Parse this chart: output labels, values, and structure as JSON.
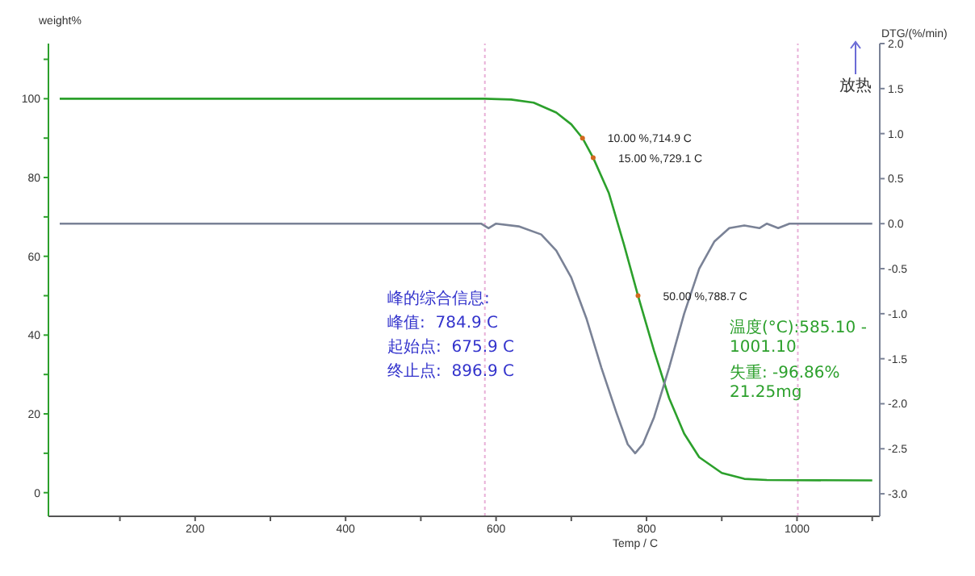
{
  "chart_data": {
    "type": "line",
    "xlabel": "Temp / C",
    "ylabel": "weight%",
    "y2label": "DTG/(%/min)",
    "xlim": [
      5,
      1110
    ],
    "xticks": [
      {
        "value": 100,
        "label": null
      },
      200,
      {
        "value": 300,
        "label": null
      },
      400,
      {
        "value": 500,
        "label": null
      },
      600,
      {
        "value": 700,
        "label": null
      },
      800,
      {
        "value": 900,
        "label": null
      },
      1000,
      {
        "value": 1100,
        "label": null
      }
    ],
    "ylim": [
      -6,
      114
    ],
    "yticks": [
      0,
      {
        "value": 10,
        "label": null
      },
      20,
      {
        "value": 30,
        "label": null
      },
      40,
      {
        "value": 50,
        "label": null
      },
      60,
      {
        "value": 70,
        "label": null
      },
      80,
      {
        "value": 90,
        "label": null
      },
      100,
      {
        "value": 110,
        "label": null
      }
    ],
    "y2lim": [
      -3.25,
      2.0
    ],
    "y2ticks": [
      {
        "value": -3,
        "label": "-3.0"
      },
      {
        "value": -2.5,
        "label": "-2.5"
      },
      {
        "value": -2,
        "label": "-2.0"
      },
      {
        "value": -1.5,
        "label": "-1.5"
      },
      {
        "value": -1,
        "label": "-1.0"
      },
      {
        "value": -0.5,
        "label": "-0.5"
      },
      {
        "value": 0,
        "label": "0.0"
      },
      {
        "value": 0.5,
        "label": "0.5"
      },
      {
        "value": 1,
        "label": "1.0"
      },
      {
        "value": 1.5,
        "label": "1.5"
      },
      {
        "value": 2,
        "label": "2.0"
      }
    ],
    "grid": false,
    "line_style": "solid",
    "series": [
      {
        "color": "#2ca02c",
        "x": [
          20,
          585,
          620,
          650,
          680,
          700,
          714.9,
          729.1,
          750,
          770,
          788.7,
          810,
          830,
          850,
          870,
          900,
          930,
          960,
          1100
        ],
        "values": [
          100,
          100,
          99.8,
          99,
          96.5,
          93.5,
          90,
          85,
          76,
          63,
          50,
          36,
          24,
          15,
          9,
          5,
          3.5,
          3.2,
          3.1
        ]
      },
      {
        "color": "#7a8296",
        "axis": "y2",
        "x": [
          20,
          580,
          590,
          600,
          630,
          660,
          680,
          700,
          720,
          740,
          760,
          775,
          784.9,
          795,
          810,
          830,
          850,
          870,
          890,
          910,
          930,
          950,
          960,
          975,
          990,
          1100
        ],
        "values": [
          0,
          0,
          -0.05,
          0,
          -0.03,
          -0.12,
          -0.3,
          -0.6,
          -1.05,
          -1.6,
          -2.1,
          -2.45,
          -2.55,
          -2.45,
          -2.15,
          -1.6,
          -1.0,
          -0.5,
          -0.2,
          -0.05,
          -0.02,
          -0.05,
          0,
          -0.05,
          0,
          0
        ]
      }
    ],
    "ref_lines": [
      {
        "axis": "x",
        "value": 585.1,
        "color": "#e8b0d8",
        "line_style": "dotted"
      },
      {
        "axis": "x",
        "value": 1001.1,
        "color": "#e8b0d8",
        "line_style": "dotted"
      }
    ],
    "annotations": [
      {
        "text": "10.00 %,714.9 C",
        "x": 714.9,
        "y": 90
      },
      {
        "text": "15.00 %,729.1 C",
        "x": 729.1,
        "y": 85
      },
      {
        "text": "50.00 %,788.7 C",
        "x": 788.7,
        "y": 50
      },
      "放热",
      "峰的综合信息:",
      "峰值:  784.9 C",
      "起始点:  675.9 C",
      "终止点:  896.9 C",
      "温度(°C):585.10 - 1001.10",
      "失重:  -96.86% 21.25mg"
    ]
  }
}
